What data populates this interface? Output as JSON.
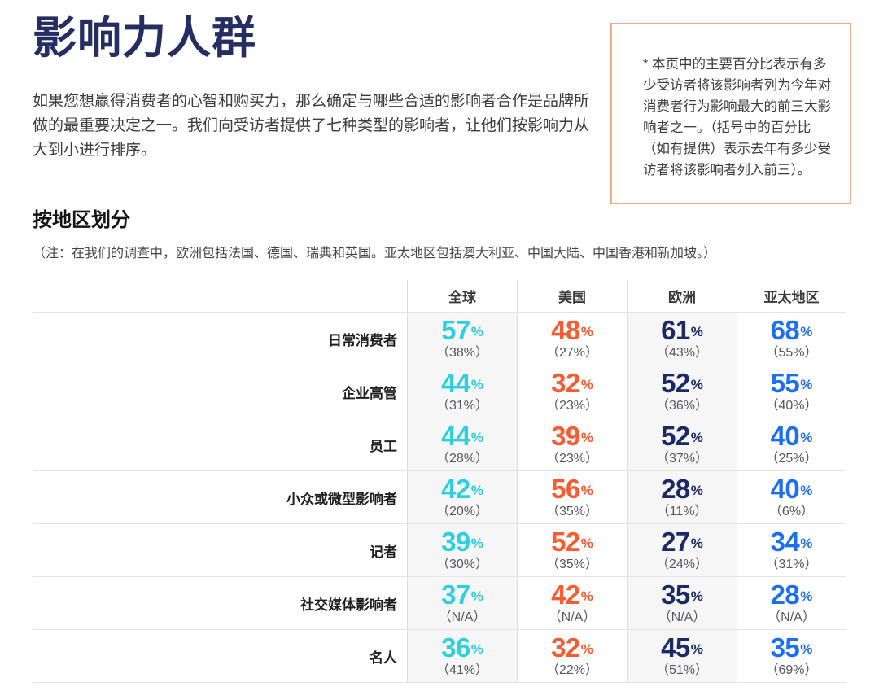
{
  "page": {
    "title": "影响力人群",
    "intro": "如果您想赢得消费者的心智和购买力，那么确定与哪些合适的影响者合作是品牌所做的最重要决定之一。我们向受访者提供了七种类型的影响者，让他们按影响力从大到小进行排序。",
    "side_note": "* 本页中的主要百分比表示有多少受访者将该影响者列为今年对消费者行为影响最大的前三大影响者之一。（括号中的百分比（如有提供）表示去年有多少受访者将该影响者列入前三）。",
    "section_title": "按地区划分",
    "section_note": "（注：在我们的调查中，欧洲包括法国、德国、瑞典和英国。亚太地区包括澳大利亚、中国大陆、中国香港和新加坡。）"
  },
  "colors": {
    "title_navy": "#242e62",
    "note_box_border": "#f0a98b",
    "global_cyan": "#2ed0e0",
    "us_orange": "#fb5b32",
    "europe_navy": "#1b2a66",
    "apac_blue": "#1d6ff2",
    "stripe_bg": "#f6f6f7",
    "paren_gray": "#57575b"
  },
  "table": {
    "columns": [
      {
        "label": "全球",
        "color": "#2ed0e0",
        "striped": true
      },
      {
        "label": "美国",
        "color": "#fb5b32",
        "striped": false
      },
      {
        "label": "欧洲",
        "color": "#1b2a66",
        "striped": true
      },
      {
        "label": "亚太地区",
        "color": "#1d6ff2",
        "striped": false
      }
    ],
    "rows": [
      {
        "label": "日常消费者",
        "cells": [
          {
            "v": "57",
            "u": "%",
            "p": "（38%）"
          },
          {
            "v": "48",
            "u": "%",
            "p": "（27%）"
          },
          {
            "v": "61",
            "u": "%",
            "p": "（43%）"
          },
          {
            "v": "68",
            "u": "%",
            "p": "（55%）"
          }
        ]
      },
      {
        "label": "企业高管",
        "cells": [
          {
            "v": "44",
            "u": "%",
            "p": "（31%）"
          },
          {
            "v": "32",
            "u": "%",
            "p": "（23%）"
          },
          {
            "v": "52",
            "u": "%",
            "p": "（36%）"
          },
          {
            "v": "55",
            "u": "%",
            "p": "（40%）"
          }
        ]
      },
      {
        "label": "员工",
        "cells": [
          {
            "v": "44",
            "u": "%",
            "p": "（28%）"
          },
          {
            "v": "39",
            "u": "%",
            "p": "（23%）"
          },
          {
            "v": "52",
            "u": "%",
            "p": "（37%）"
          },
          {
            "v": "40",
            "u": "%",
            "p": "（25%）"
          }
        ]
      },
      {
        "label": "小众或微型影响者",
        "cells": [
          {
            "v": "42",
            "u": "%",
            "p": "（20%）"
          },
          {
            "v": "56",
            "u": "%",
            "p": "（35%）"
          },
          {
            "v": "28",
            "u": "%",
            "p": "（11%）"
          },
          {
            "v": "40",
            "u": "%",
            "p": "（6%）"
          }
        ]
      },
      {
        "label": "记者",
        "cells": [
          {
            "v": "39",
            "u": "%",
            "p": "（30%）"
          },
          {
            "v": "52",
            "u": "%",
            "p": "（35%）"
          },
          {
            "v": "27",
            "u": "%",
            "p": "（24%）"
          },
          {
            "v": "34",
            "u": "%",
            "p": "（31%）"
          }
        ]
      },
      {
        "label": "社交媒体影响者",
        "cells": [
          {
            "v": "37",
            "u": "%",
            "p": "（N/A）"
          },
          {
            "v": "42",
            "u": "%",
            "p": "（N/A）"
          },
          {
            "v": "35",
            "u": "%",
            "p": "（N/A）"
          },
          {
            "v": "28",
            "u": "%",
            "p": "（N/A）"
          }
        ]
      },
      {
        "label": "名人",
        "cells": [
          {
            "v": "36",
            "u": "%",
            "p": "（41%）"
          },
          {
            "v": "32",
            "u": "%",
            "p": "（22%）"
          },
          {
            "v": "45",
            "u": "%",
            "p": "（51%）"
          },
          {
            "v": "35",
            "u": "%",
            "p": "（69%）"
          }
        ]
      }
    ]
  },
  "chart_data": {
    "type": "table",
    "title": "影响力人群 — 按地区划分",
    "categories": [
      "日常消费者",
      "企业高管",
      "员工",
      "小众或微型影响者",
      "记者",
      "社交媒体影响者",
      "名人"
    ],
    "series": [
      {
        "name": "全球",
        "values": [
          57,
          44,
          44,
          42,
          39,
          37,
          36
        ],
        "prev_year": [
          38,
          31,
          28,
          20,
          30,
          null,
          41
        ]
      },
      {
        "name": "美国",
        "values": [
          48,
          32,
          39,
          56,
          52,
          42,
          32
        ],
        "prev_year": [
          27,
          23,
          23,
          35,
          35,
          null,
          22
        ]
      },
      {
        "name": "欧洲",
        "values": [
          61,
          52,
          52,
          28,
          27,
          35,
          45
        ],
        "prev_year": [
          43,
          36,
          37,
          11,
          24,
          null,
          51
        ]
      },
      {
        "name": "亚太地区",
        "values": [
          68,
          55,
          40,
          40,
          34,
          28,
          35
        ],
        "prev_year": [
          55,
          40,
          25,
          6,
          31,
          null,
          69
        ]
      }
    ],
    "unit": "%"
  }
}
